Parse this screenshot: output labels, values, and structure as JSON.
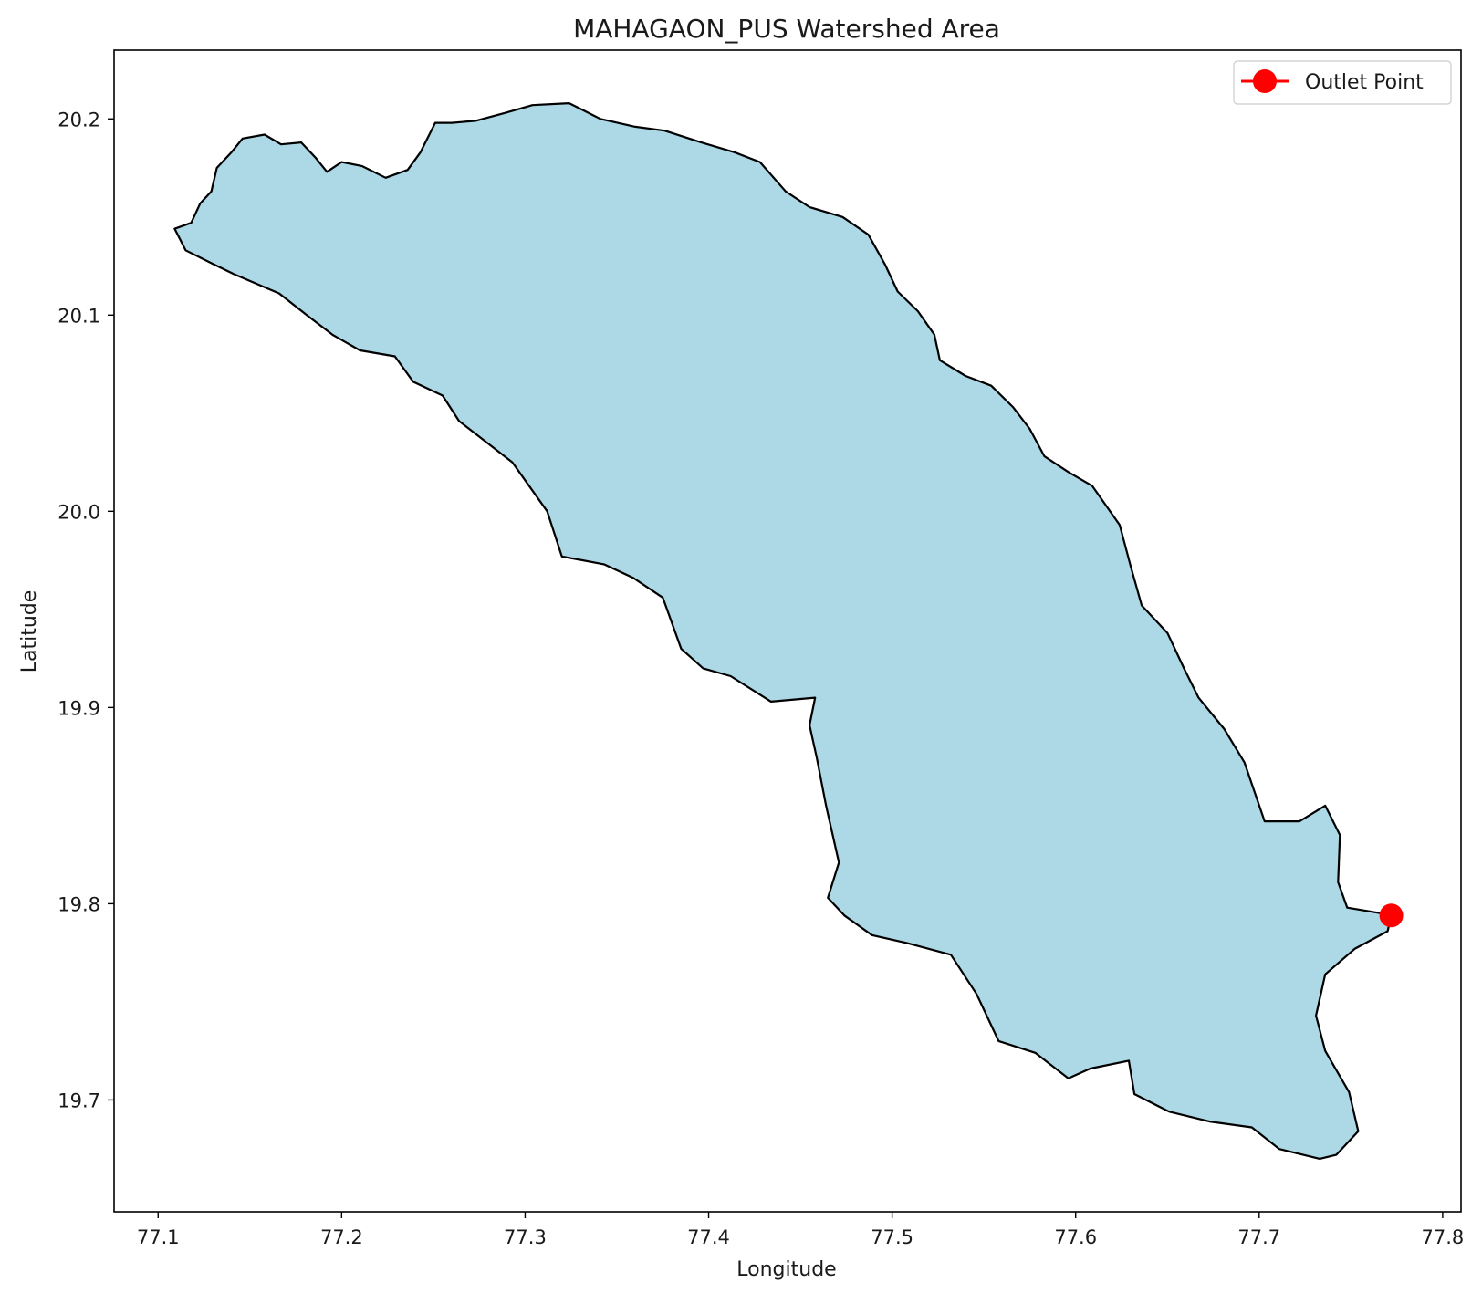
{
  "chart_data": {
    "type": "map",
    "title": "MAHAGAON_PUS Watershed Area",
    "xlabel": "Longitude",
    "ylabel": "Latitude",
    "xlim": [
      77.076,
      77.81
    ],
    "ylim": [
      19.643,
      20.235
    ],
    "x_ticks": [
      {
        "value": 77.1,
        "label": "77.1"
      },
      {
        "value": 77.2,
        "label": "77.2"
      },
      {
        "value": 77.3,
        "label": "77.3"
      },
      {
        "value": 77.4,
        "label": "77.4"
      },
      {
        "value": 77.5,
        "label": "77.5"
      },
      {
        "value": 77.6,
        "label": "77.6"
      },
      {
        "value": 77.7,
        "label": "77.7"
      },
      {
        "value": 77.8,
        "label": "77.8"
      }
    ],
    "y_ticks": [
      {
        "value": 19.7,
        "label": "19.7"
      },
      {
        "value": 19.8,
        "label": "19.8"
      },
      {
        "value": 19.9,
        "label": "19.9"
      },
      {
        "value": 20.0,
        "label": "20.0"
      },
      {
        "value": 20.1,
        "label": "20.1"
      },
      {
        "value": 20.2,
        "label": "20.2"
      }
    ],
    "grid": false,
    "legend": {
      "placement": "top-right",
      "entries": [
        {
          "label": "Outlet Point",
          "color": "#ff0000",
          "marker": "circle",
          "line": true
        }
      ]
    },
    "watershed": {
      "fill_color": "#add8e6",
      "edge_color": "#000000",
      "boundary": [
        [
          77.109,
          20.144
        ],
        [
          77.118,
          20.147
        ],
        [
          77.123,
          20.157
        ],
        [
          77.129,
          20.163
        ],
        [
          77.132,
          20.175
        ],
        [
          77.14,
          20.183
        ],
        [
          77.146,
          20.19
        ],
        [
          77.158,
          20.192
        ],
        [
          77.167,
          20.187
        ],
        [
          77.178,
          20.188
        ],
        [
          77.186,
          20.18
        ],
        [
          77.192,
          20.173
        ],
        [
          77.2,
          20.178
        ],
        [
          77.211,
          20.176
        ],
        [
          77.224,
          20.17
        ],
        [
          77.236,
          20.174
        ],
        [
          77.243,
          20.183
        ],
        [
          77.251,
          20.198
        ],
        [
          77.26,
          20.198
        ],
        [
          77.273,
          20.199
        ],
        [
          77.289,
          20.203
        ],
        [
          77.304,
          20.207
        ],
        [
          77.324,
          20.208
        ],
        [
          77.341,
          20.2
        ],
        [
          77.36,
          20.196
        ],
        [
          77.376,
          20.194
        ],
        [
          77.396,
          20.188
        ],
        [
          77.414,
          20.183
        ],
        [
          77.428,
          20.178
        ],
        [
          77.442,
          20.163
        ],
        [
          77.455,
          20.155
        ],
        [
          77.473,
          20.15
        ],
        [
          77.487,
          20.141
        ],
        [
          77.496,
          20.126
        ],
        [
          77.503,
          20.112
        ],
        [
          77.514,
          20.102
        ],
        [
          77.523,
          20.09
        ],
        [
          77.526,
          20.077
        ],
        [
          77.54,
          20.069
        ],
        [
          77.554,
          20.064
        ],
        [
          77.566,
          20.053
        ],
        [
          77.575,
          20.042
        ],
        [
          77.583,
          20.028
        ],
        [
          77.596,
          20.02
        ],
        [
          77.609,
          20.013
        ],
        [
          77.624,
          19.993
        ],
        [
          77.63,
          19.972
        ],
        [
          77.636,
          19.952
        ],
        [
          77.65,
          19.938
        ],
        [
          77.659,
          19.92
        ],
        [
          77.667,
          19.905
        ],
        [
          77.681,
          19.889
        ],
        [
          77.692,
          19.872
        ],
        [
          77.703,
          19.842
        ],
        [
          77.722,
          19.842
        ],
        [
          77.736,
          19.85
        ],
        [
          77.744,
          19.835
        ],
        [
          77.743,
          19.811
        ],
        [
          77.748,
          19.798
        ],
        [
          77.767,
          19.795
        ],
        [
          77.772,
          19.794
        ],
        [
          77.77,
          19.786
        ],
        [
          77.752,
          19.777
        ],
        [
          77.736,
          19.764
        ],
        [
          77.731,
          19.743
        ],
        [
          77.736,
          19.725
        ],
        [
          77.749,
          19.704
        ],
        [
          77.754,
          19.684
        ],
        [
          77.742,
          19.672
        ],
        [
          77.733,
          19.67
        ],
        [
          77.711,
          19.675
        ],
        [
          77.696,
          19.686
        ],
        [
          77.673,
          19.689
        ],
        [
          77.651,
          19.694
        ],
        [
          77.632,
          19.703
        ],
        [
          77.629,
          19.72
        ],
        [
          77.608,
          19.716
        ],
        [
          77.596,
          19.711
        ],
        [
          77.578,
          19.724
        ],
        [
          77.558,
          19.73
        ],
        [
          77.546,
          19.754
        ],
        [
          77.532,
          19.774
        ],
        [
          77.508,
          19.78
        ],
        [
          77.489,
          19.784
        ],
        [
          77.474,
          19.794
        ],
        [
          77.465,
          19.803
        ],
        [
          77.471,
          19.821
        ],
        [
          77.464,
          19.85
        ],
        [
          77.459,
          19.874
        ],
        [
          77.455,
          19.891
        ],
        [
          77.458,
          19.905
        ],
        [
          77.434,
          19.903
        ],
        [
          77.412,
          19.916
        ],
        [
          77.397,
          19.92
        ],
        [
          77.385,
          19.93
        ],
        [
          77.375,
          19.956
        ],
        [
          77.359,
          19.966
        ],
        [
          77.343,
          19.973
        ],
        [
          77.32,
          19.977
        ],
        [
          77.312,
          20.0
        ],
        [
          77.293,
          20.025
        ],
        [
          77.264,
          20.046
        ],
        [
          77.255,
          20.059
        ],
        [
          77.239,
          20.066
        ],
        [
          77.229,
          20.079
        ],
        [
          77.21,
          20.082
        ],
        [
          77.195,
          20.09
        ],
        [
          77.181,
          20.1
        ],
        [
          77.166,
          20.111
        ],
        [
          77.141,
          20.121
        ],
        [
          77.13,
          20.126
        ],
        [
          77.115,
          20.133
        ],
        [
          77.109,
          20.144
        ]
      ]
    },
    "outlet_point": {
      "lon": 77.772,
      "lat": 19.794,
      "color": "#ff0000"
    }
  }
}
